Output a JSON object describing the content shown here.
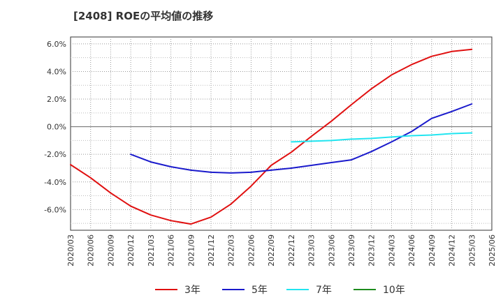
{
  "chart_data": {
    "type": "line",
    "title": "[2408]  ROEの平均値の推移",
    "xlabel": "",
    "ylabel": "",
    "ylim": [
      -7.5,
      6.5
    ],
    "yticks": [
      6,
      4,
      2,
      0,
      -2,
      -4,
      -6
    ],
    "ytick_labels": [
      "6.0%",
      "4.0%",
      "2.0%",
      "0.0%",
      "-2.0%",
      "-4.0%",
      "-6.0%"
    ],
    "categories": [
      "2020/03",
      "2020/06",
      "2020/09",
      "2020/12",
      "2021/03",
      "2021/06",
      "2021/09",
      "2021/12",
      "2022/03",
      "2022/06",
      "2022/09",
      "2022/12",
      "2023/03",
      "2023/06",
      "2023/09",
      "2023/12",
      "2024/03",
      "2024/06",
      "2024/09",
      "2024/12",
      "2025/03",
      "2025/06"
    ],
    "grid": true,
    "legend_position": "bottom",
    "series": [
      {
        "name": "3年",
        "color": "#e01010",
        "values": [
          -2.75,
          -3.7,
          -4.8,
          -5.75,
          -6.4,
          -6.8,
          -7.05,
          -6.55,
          -5.6,
          -4.3,
          -2.8,
          -1.85,
          -0.7,
          0.4,
          1.6,
          2.75,
          3.75,
          4.5,
          5.1,
          5.45,
          5.6,
          null
        ]
      },
      {
        "name": "5年",
        "color": "#1a1acc",
        "values": [
          null,
          null,
          null,
          -2.0,
          -2.55,
          -2.9,
          -3.15,
          -3.3,
          -3.35,
          -3.3,
          -3.15,
          -3.0,
          -2.8,
          -2.6,
          -2.4,
          -1.8,
          -1.1,
          -0.35,
          0.6,
          1.1,
          1.65,
          null
        ]
      },
      {
        "name": "7年",
        "color": "#22e5f0",
        "values": [
          null,
          null,
          null,
          null,
          null,
          null,
          null,
          null,
          null,
          null,
          null,
          -1.1,
          -1.05,
          -1.0,
          -0.9,
          -0.85,
          -0.75,
          -0.65,
          -0.6,
          -0.5,
          -0.45,
          null
        ]
      },
      {
        "name": "10年",
        "color": "#1e8c1e",
        "values": [
          null,
          null,
          null,
          null,
          null,
          null,
          null,
          null,
          null,
          null,
          null,
          null,
          null,
          null,
          null,
          null,
          null,
          null,
          null,
          null,
          null,
          null
        ]
      }
    ]
  }
}
